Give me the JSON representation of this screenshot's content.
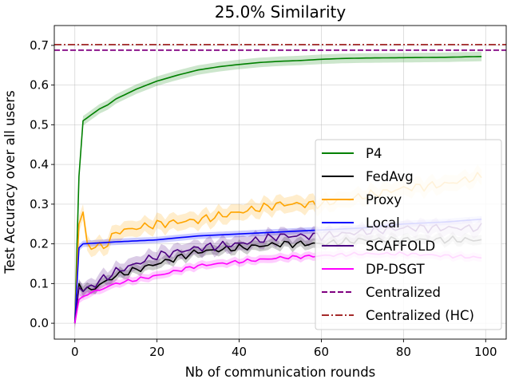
{
  "chart_data": {
    "type": "line",
    "title": "25.0% Similarity",
    "xlabel": "Nb of communication rounds",
    "ylabel": "Test Accuracy over all users",
    "xlim": [
      -5,
      105
    ],
    "ylim": [
      -0.04,
      0.75
    ],
    "xticks": [
      0,
      20,
      40,
      60,
      80,
      100
    ],
    "yticks": [
      0.0,
      0.1,
      0.2,
      0.3,
      0.4,
      0.5,
      0.6,
      0.7
    ],
    "grid": true,
    "legend_location": "lower-right",
    "series": [
      {
        "name": "P4",
        "color": "#008000",
        "style": "solid",
        "band": 0.012,
        "anchors": [
          [
            0,
            0.0
          ],
          [
            1,
            0.37
          ],
          [
            2,
            0.51
          ],
          [
            4,
            0.525
          ],
          [
            6,
            0.54
          ],
          [
            8,
            0.55
          ],
          [
            10,
            0.565
          ],
          [
            15,
            0.59
          ],
          [
            20,
            0.61
          ],
          [
            25,
            0.625
          ],
          [
            30,
            0.638
          ],
          [
            35,
            0.646
          ],
          [
            40,
            0.652
          ],
          [
            45,
            0.657
          ],
          [
            50,
            0.66
          ],
          [
            55,
            0.662
          ],
          [
            60,
            0.665
          ],
          [
            65,
            0.667
          ],
          [
            70,
            0.668
          ],
          [
            80,
            0.669
          ],
          [
            90,
            0.67
          ],
          [
            99,
            0.672
          ]
        ]
      },
      {
        "name": "FedAvg",
        "color": "#000000",
        "style": "solid",
        "band": 0.012,
        "noise": 0.008,
        "anchors": [
          [
            0,
            0.0
          ],
          [
            1,
            0.1
          ],
          [
            2,
            0.08
          ],
          [
            5,
            0.09
          ],
          [
            10,
            0.12
          ],
          [
            20,
            0.15
          ],
          [
            30,
            0.18
          ],
          [
            40,
            0.19
          ],
          [
            50,
            0.2
          ],
          [
            60,
            0.2
          ],
          [
            70,
            0.21
          ],
          [
            80,
            0.21
          ],
          [
            90,
            0.21
          ],
          [
            99,
            0.21
          ]
        ]
      },
      {
        "name": "Proxy",
        "color": "#FFA500",
        "style": "solid",
        "band": 0.02,
        "noise": 0.01,
        "anchors": [
          [
            0,
            0.0
          ],
          [
            1,
            0.25
          ],
          [
            2,
            0.28
          ],
          [
            3,
            0.2
          ],
          [
            5,
            0.19
          ],
          [
            8,
            0.2
          ],
          [
            10,
            0.23
          ],
          [
            15,
            0.24
          ],
          [
            20,
            0.25
          ],
          [
            30,
            0.26
          ],
          [
            40,
            0.28
          ],
          [
            50,
            0.3
          ],
          [
            55,
            0.3
          ],
          [
            60,
            0.3
          ],
          [
            70,
            0.32
          ],
          [
            80,
            0.34
          ],
          [
            90,
            0.35
          ],
          [
            99,
            0.37
          ]
        ]
      },
      {
        "name": "Local",
        "color": "#0000FF",
        "style": "solid",
        "band": 0.008,
        "anchors": [
          [
            0,
            0.0
          ],
          [
            1,
            0.19
          ],
          [
            2,
            0.2
          ],
          [
            10,
            0.205
          ],
          [
            20,
            0.21
          ],
          [
            30,
            0.22
          ],
          [
            40,
            0.225
          ],
          [
            50,
            0.23
          ],
          [
            60,
            0.235
          ],
          [
            70,
            0.24
          ],
          [
            80,
            0.25
          ],
          [
            90,
            0.255
          ],
          [
            99,
            0.262
          ]
        ]
      },
      {
        "name": "SCAFFOLD",
        "color": "#4B0082",
        "style": "solid",
        "band": 0.018,
        "noise": 0.01,
        "anchors": [
          [
            0,
            0.0
          ],
          [
            1,
            0.09
          ],
          [
            2,
            0.08
          ],
          [
            5,
            0.1
          ],
          [
            10,
            0.13
          ],
          [
            20,
            0.17
          ],
          [
            30,
            0.19
          ],
          [
            40,
            0.2
          ],
          [
            50,
            0.22
          ],
          [
            55,
            0.22
          ],
          [
            60,
            0.22
          ],
          [
            70,
            0.23
          ],
          [
            80,
            0.24
          ],
          [
            90,
            0.24
          ],
          [
            99,
            0.24
          ]
        ]
      },
      {
        "name": "DP-DSGT",
        "color": "#FF00FF",
        "style": "solid",
        "band": 0.01,
        "noise": 0.004,
        "anchors": [
          [
            0,
            0.0
          ],
          [
            1,
            0.06
          ],
          [
            3,
            0.075
          ],
          [
            5,
            0.08
          ],
          [
            10,
            0.1
          ],
          [
            20,
            0.12
          ],
          [
            30,
            0.145
          ],
          [
            40,
            0.155
          ],
          [
            50,
            0.165
          ],
          [
            60,
            0.17
          ],
          [
            70,
            0.175
          ],
          [
            80,
            0.175
          ],
          [
            90,
            0.17
          ],
          [
            99,
            0.165
          ]
        ]
      },
      {
        "name": "Centralized",
        "color": "#800080",
        "style": "dashed",
        "value": 0.688
      },
      {
        "name": "Centralized (HC)",
        "color": "#A52A2A",
        "style": "dashdot",
        "value": 0.702
      }
    ]
  }
}
